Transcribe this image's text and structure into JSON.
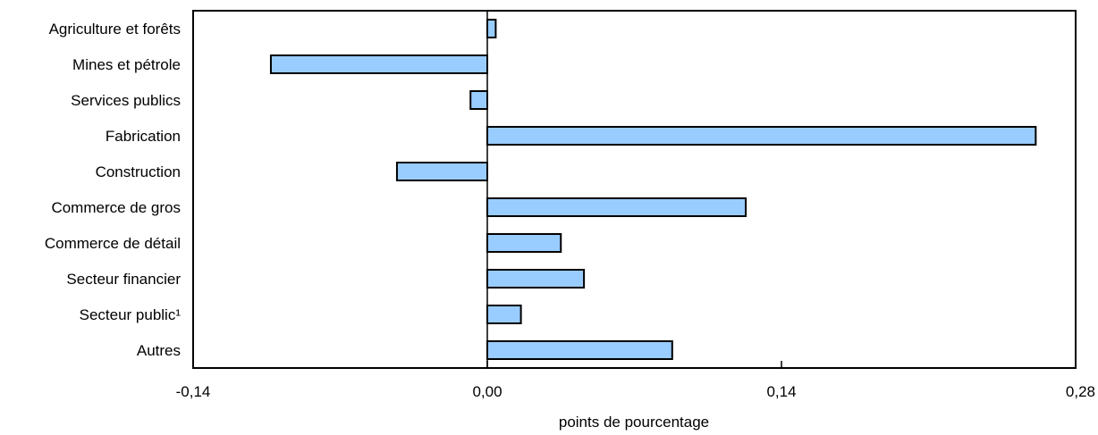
{
  "chart_data": {
    "type": "bar",
    "orientation": "horizontal",
    "categories": [
      "Agriculture et forêts",
      "Mines et pétrole",
      "Services publics",
      "Fabrication",
      "Construction",
      "Commerce de gros",
      "Commerce de détail",
      "Secteur financier",
      "Secteur public¹",
      "Autres"
    ],
    "values": [
      0.004,
      -0.103,
      -0.008,
      0.261,
      -0.043,
      0.123,
      0.035,
      0.046,
      0.016,
      0.088
    ],
    "xlabel": "points de pourcentage",
    "xlim": [
      -0.14,
      0.28
    ],
    "xticks": [
      -0.14,
      0.0,
      0.14,
      0.28
    ],
    "xtick_labels": [
      "-0,14",
      "0,00",
      "0,14",
      "0,28"
    ],
    "grid": false,
    "bar_color": "#99ccff",
    "bar_edge_color": "#000000"
  }
}
